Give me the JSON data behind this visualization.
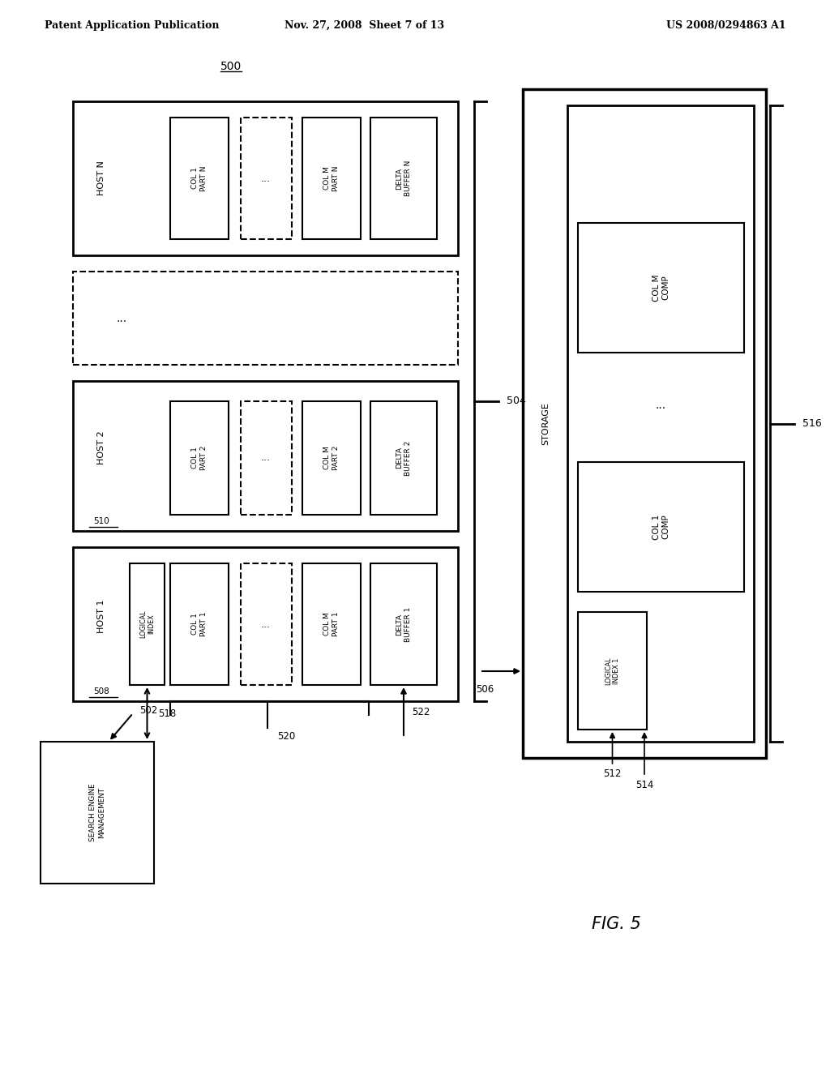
{
  "title": "FIG. 5",
  "header_left": "Patent Application Publication",
  "header_mid": "Nov. 27, 2008  Sheet 7 of 13",
  "header_right": "US 2008/0294863 A1",
  "bg_color": "#ffffff",
  "label_500": "500",
  "label_502": "502",
  "label_504": "504",
  "label_506": "506",
  "label_508": "508",
  "label_510": "510",
  "label_512": "512",
  "label_514": "514",
  "label_516": "516",
  "label_518": "518",
  "label_520": "520",
  "label_522": "522"
}
